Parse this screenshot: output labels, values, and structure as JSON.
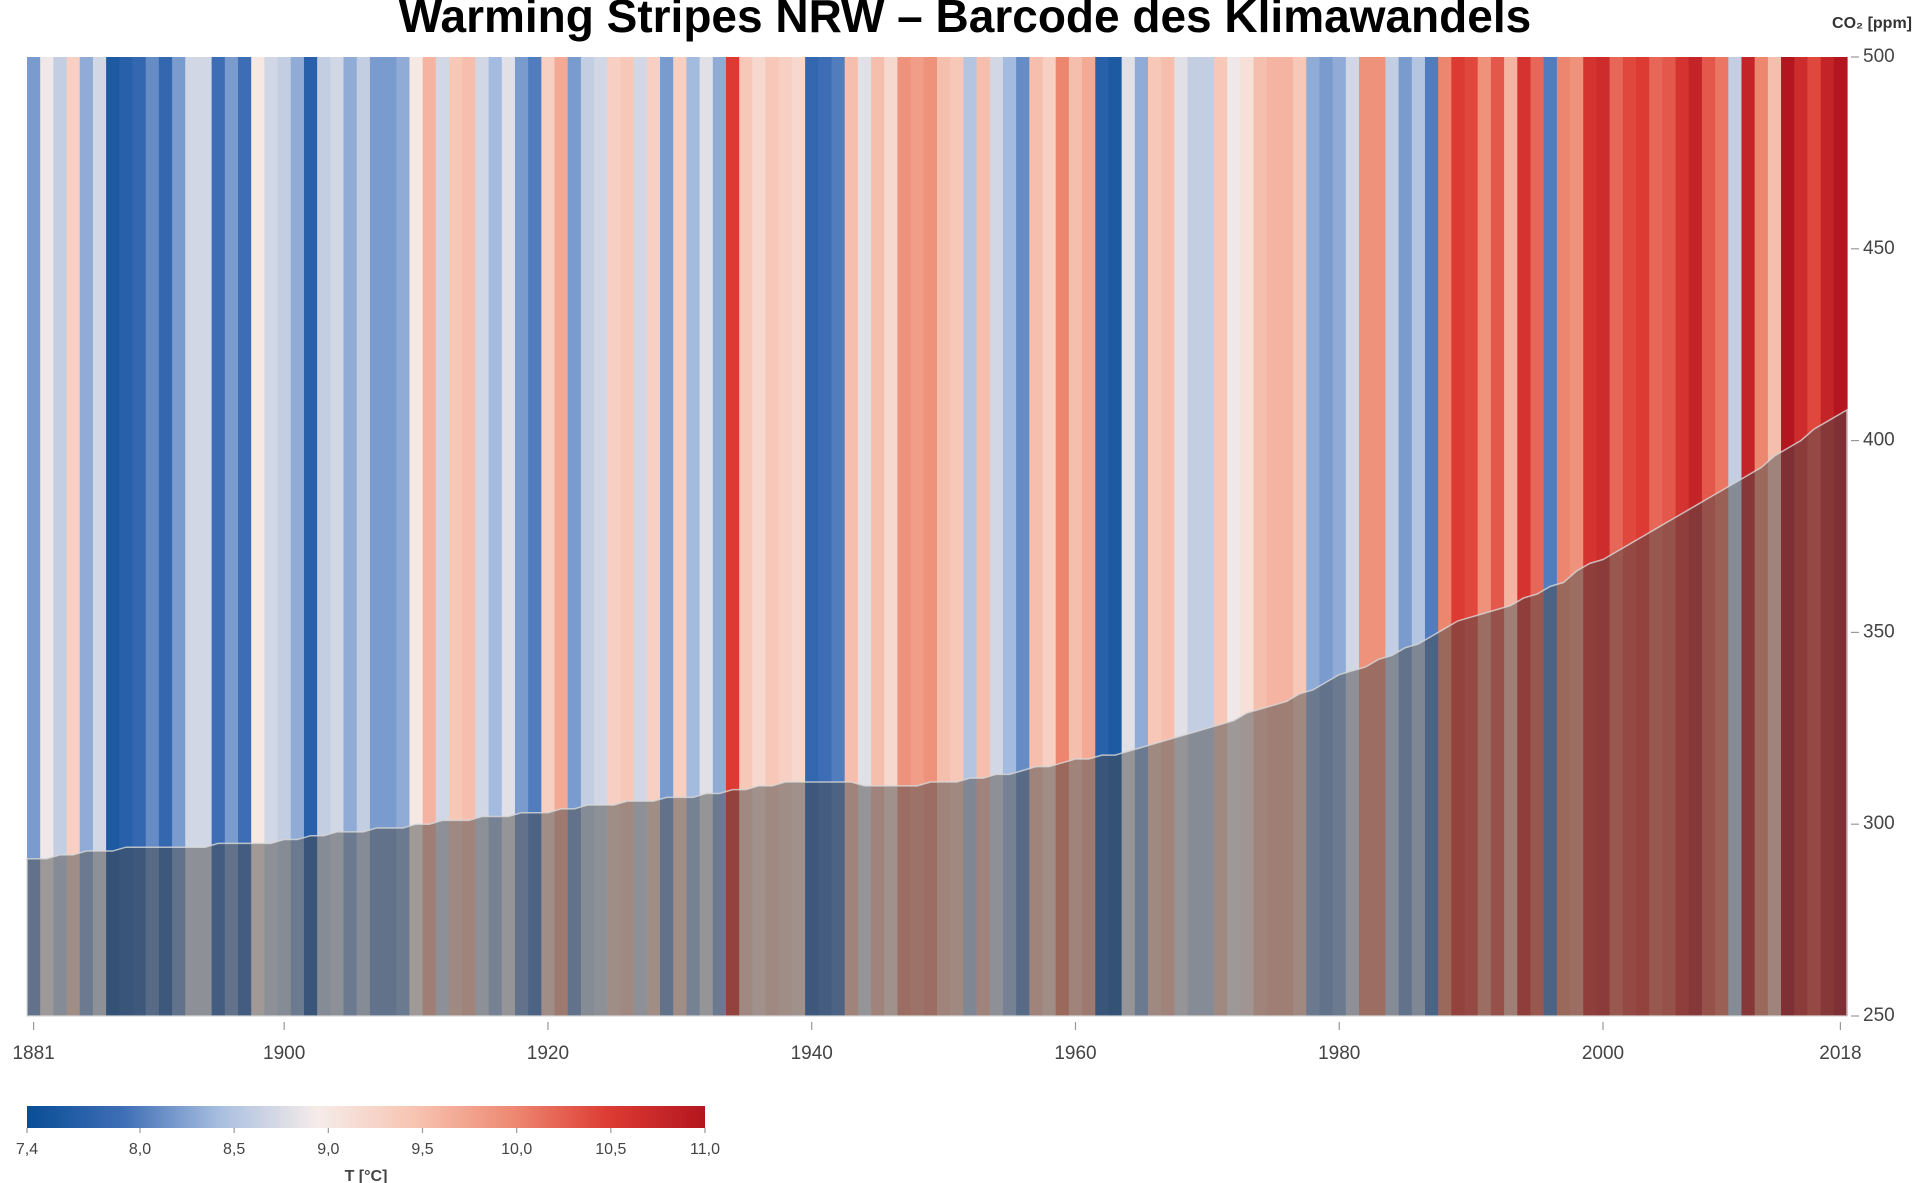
{
  "chart_data": {
    "type": "stripes",
    "title": "Warming Stripes NRW – Barcode des Klimawandels",
    "x": [
      1881,
      1882,
      1883,
      1884,
      1885,
      1886,
      1887,
      1888,
      1889,
      1890,
      1891,
      1892,
      1893,
      1894,
      1895,
      1896,
      1897,
      1898,
      1899,
      1900,
      1901,
      1902,
      1903,
      1904,
      1905,
      1906,
      1907,
      1908,
      1909,
      1910,
      1911,
      1912,
      1913,
      1914,
      1915,
      1916,
      1917,
      1918,
      1919,
      1920,
      1921,
      1922,
      1923,
      1924,
      1925,
      1926,
      1927,
      1928,
      1929,
      1930,
      1931,
      1932,
      1933,
      1934,
      1935,
      1936,
      1937,
      1938,
      1939,
      1940,
      1941,
      1942,
      1943,
      1944,
      1945,
      1946,
      1947,
      1948,
      1949,
      1950,
      1951,
      1952,
      1953,
      1954,
      1955,
      1956,
      1957,
      1958,
      1959,
      1960,
      1961,
      1962,
      1963,
      1964,
      1965,
      1966,
      1967,
      1968,
      1969,
      1970,
      1971,
      1972,
      1973,
      1974,
      1975,
      1976,
      1977,
      1978,
      1979,
      1980,
      1981,
      1982,
      1983,
      1984,
      1985,
      1986,
      1987,
      1988,
      1989,
      1990,
      1991,
      1992,
      1993,
      1994,
      1995,
      1996,
      1997,
      1998,
      1999,
      2000,
      2001,
      2002,
      2003,
      2004,
      2005,
      2006,
      2007,
      2008,
      2009,
      2010,
      2011,
      2012,
      2013,
      2014,
      2015,
      2016,
      2017,
      2018
    ],
    "values": [
      8.2,
      8.9,
      8.6,
      9.3,
      8.3,
      8.7,
      7.6,
      7.7,
      7.8,
      8.1,
      7.8,
      8.2,
      8.7,
      8.7,
      7.9,
      8.2,
      7.9,
      9.0,
      8.7,
      8.6,
      8.3,
      7.7,
      8.6,
      8.7,
      8.3,
      8.6,
      8.2,
      8.2,
      8.3,
      9.0,
      9.6,
      8.7,
      9.4,
      9.5,
      8.7,
      8.4,
      8.8,
      8.2,
      8.0,
      9.3,
      9.7,
      8.2,
      8.6,
      8.7,
      9.3,
      9.4,
      8.7,
      9.3,
      8.2,
      9.3,
      8.4,
      8.8,
      8.3,
      10.5,
      9.4,
      9.2,
      9.4,
      9.3,
      9.2,
      7.8,
      7.9,
      8.0,
      9.5,
      8.8,
      9.5,
      9.2,
      9.9,
      9.8,
      9.9,
      9.5,
      9.4,
      8.5,
      9.5,
      8.7,
      8.4,
      8.1,
      9.5,
      9.3,
      10.0,
      9.5,
      9.7,
      7.7,
      7.6,
      8.8,
      8.3,
      9.4,
      9.5,
      8.8,
      8.6,
      8.6,
      9.4,
      8.9,
      9.1,
      9.5,
      9.6,
      9.6,
      9.4,
      8.3,
      8.2,
      8.3,
      8.7,
      9.9,
      9.9,
      8.6,
      8.2,
      8.5,
      8.0,
      10.0,
      10.5,
      10.4,
      9.9,
      10.3,
      9.6,
      10.6,
      10.2,
      8.0,
      10.0,
      9.9,
      10.6,
      10.7,
      10.2,
      10.4,
      10.5,
      10.2,
      10.3,
      10.6,
      10.8,
      10.3,
      10.1,
      8.6,
      10.8,
      10.0,
      9.5,
      11.0,
      10.7,
      10.4,
      10.8,
      11.0
    ],
    "xlim": [
      1880.5,
      2018.5
    ],
    "xticks": [
      1881,
      1900,
      1920,
      1940,
      1960,
      1980,
      2000,
      2018
    ],
    "colorbar": {
      "label": "T [°C]",
      "lim": [
        7.4,
        11.0
      ],
      "ticks": [
        {
          "value": 7.4,
          "label": "7,4"
        },
        {
          "value": 8.0,
          "label": "8,0"
        },
        {
          "value": 8.5,
          "label": "8,5"
        },
        {
          "value": 9.0,
          "label": "9,0"
        },
        {
          "value": 9.5,
          "label": "9,5"
        },
        {
          "value": 10.0,
          "label": "10,0"
        },
        {
          "value": 10.5,
          "label": "10,5"
        },
        {
          "value": 11.0,
          "label": "11,0"
        }
      ],
      "colors": [
        "#084d96",
        "#3f6fb6",
        "#a9bfe0",
        "#f6ece9",
        "#f7c4b2",
        "#ee8a73",
        "#dd3b33",
        "#b3161f"
      ]
    },
    "y2label": "CO₂ [ppm]",
    "y2lim": [
      250,
      500
    ],
    "y2ticks": [
      250,
      300,
      350,
      400,
      450,
      500
    ],
    "area": {
      "axis": "y2",
      "color": "#4a4a4a",
      "values": [
        291,
        291,
        292,
        292,
        293,
        293,
        293,
        294,
        294,
        294,
        294,
        294,
        294,
        294,
        295,
        295,
        295,
        295,
        295,
        296,
        296,
        297,
        297,
        298,
        298,
        298,
        299,
        299,
        299,
        300,
        300,
        301,
        301,
        301,
        302,
        302,
        302,
        303,
        303,
        303,
        304,
        304,
        305,
        305,
        305,
        306,
        306,
        306,
        307,
        307,
        307,
        308,
        308,
        309,
        309,
        310,
        310,
        311,
        311,
        311,
        311,
        311,
        311,
        310,
        310,
        310,
        310,
        310,
        311,
        311,
        311,
        312,
        312,
        313,
        313,
        314,
        315,
        315,
        316,
        317,
        317,
        318,
        318,
        319,
        320,
        321,
        322,
        323,
        324,
        325,
        326,
        327,
        329,
        330,
        331,
        332,
        334,
        335,
        337,
        339,
        340,
        341,
        343,
        344,
        346,
        347,
        349,
        351,
        353,
        354,
        355,
        356,
        357,
        359,
        360,
        362,
        363,
        366,
        368,
        369,
        371,
        373,
        375,
        377,
        379,
        381,
        383,
        385,
        387,
        389,
        391,
        393,
        396,
        398,
        400,
        403,
        405,
        408
      ]
    }
  }
}
